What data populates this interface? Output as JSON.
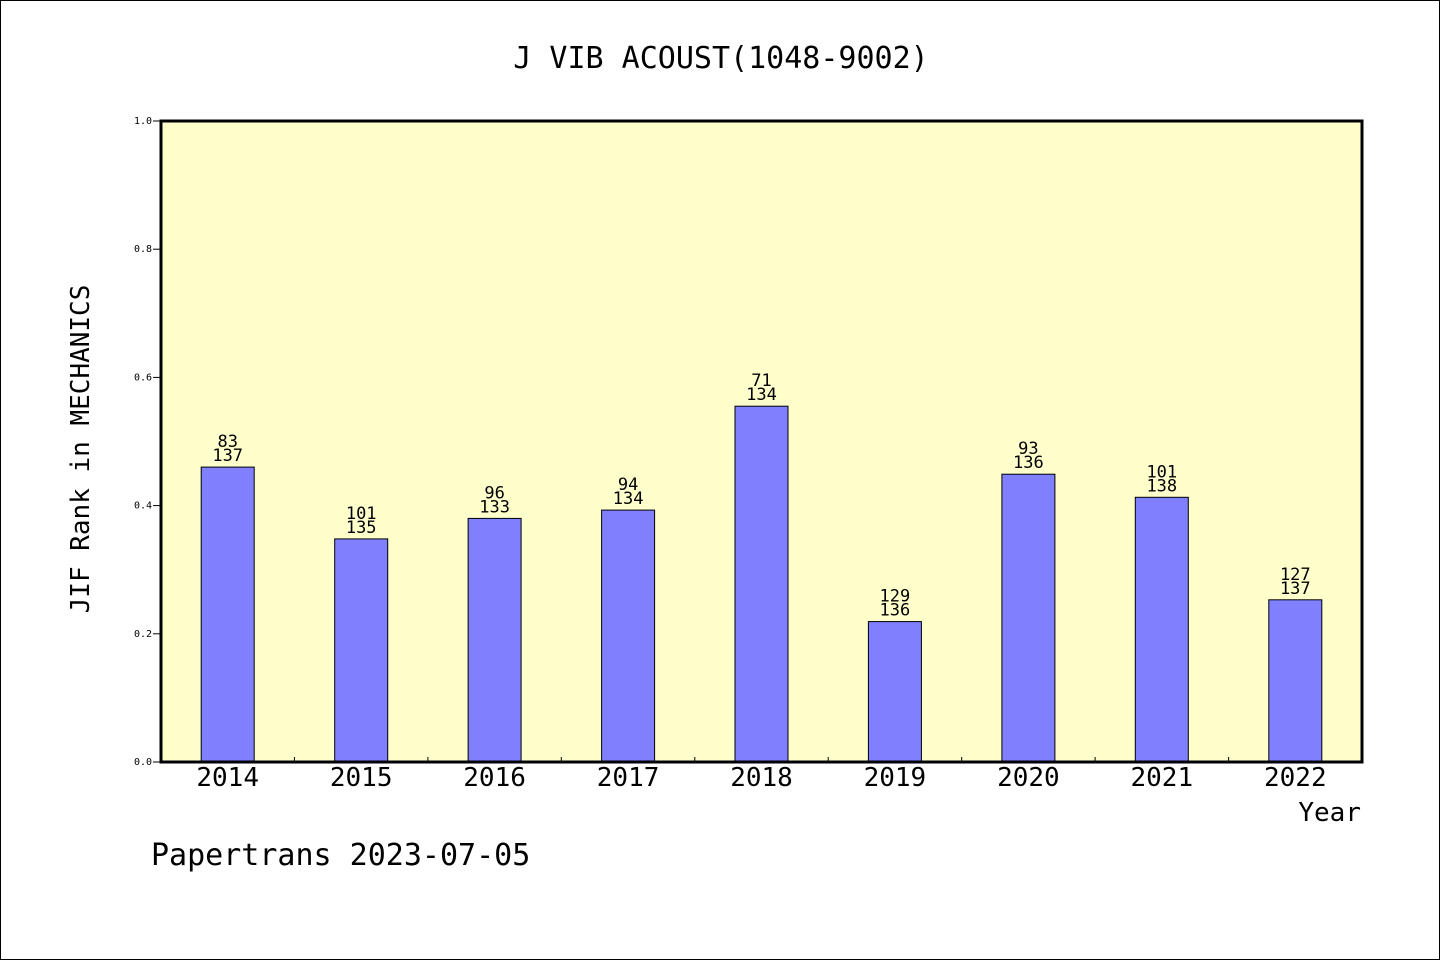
{
  "chart_data": {
    "type": "bar",
    "title": "J VIB ACOUST(1048-9002)",
    "xlabel": "Year",
    "ylabel": "JIF Rank in MECHANICS",
    "footer": "Papertrans 2023-07-05",
    "ylim": [
      0,
      1.0
    ],
    "yticks": [
      "0.0",
      "0.2",
      "0.4",
      "0.6",
      "0.8",
      "1.0"
    ],
    "categories": [
      "2014",
      "2015",
      "2016",
      "2017",
      "2018",
      "2019",
      "2020",
      "2021",
      "2022"
    ],
    "values": [
      0.46,
      0.348,
      0.38,
      0.393,
      0.555,
      0.219,
      0.449,
      0.413,
      0.253
    ],
    "rank": [
      "83",
      "101",
      "96",
      "94",
      "71",
      "129",
      "93",
      "101",
      "127"
    ],
    "total": [
      "137",
      "135",
      "133",
      "134",
      "134",
      "136",
      "136",
      "138",
      "137"
    ],
    "grid": false,
    "legend": "none",
    "colors": {
      "bar": "#8080ff",
      "plot_background": "#ffffcc",
      "axis": "#000000"
    }
  }
}
